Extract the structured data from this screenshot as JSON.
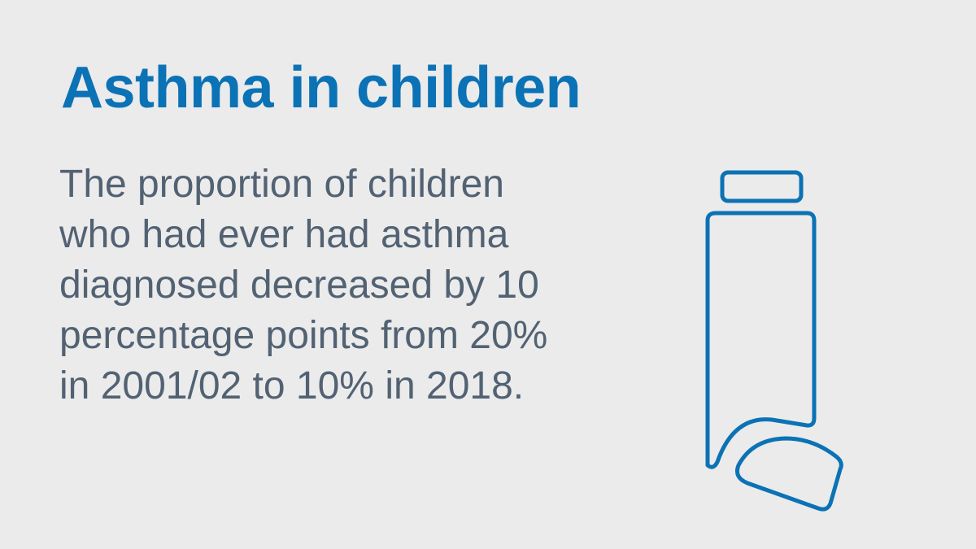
{
  "card": {
    "title": "Asthma in children",
    "body_lines": [
      "The proportion of children",
      "who had ever had asthma",
      "diagnosed decreased by 10",
      "percentage points from 20%",
      "in 2001/02 to 10% in 2018."
    ],
    "icon": "inhaler-icon"
  },
  "colors": {
    "background": "#ebebeb",
    "title": "#0b72b5",
    "body_text": "#526273",
    "icon_stroke": "#0b72b5"
  }
}
